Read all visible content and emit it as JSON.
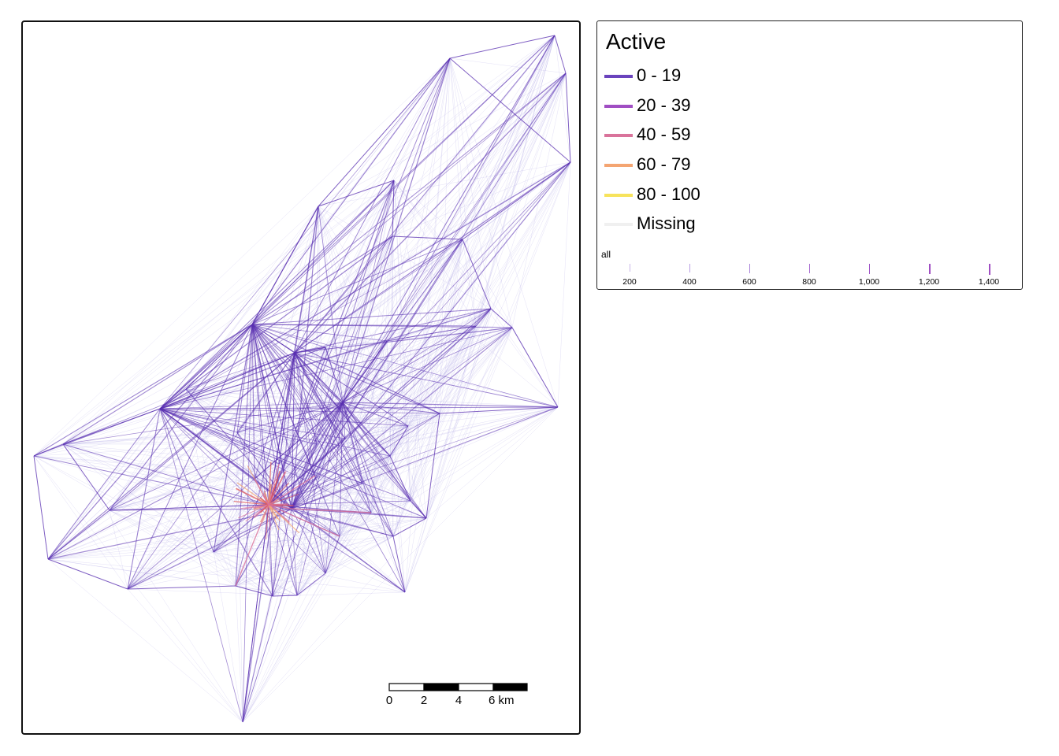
{
  "legend": {
    "title": "Active",
    "items": [
      {
        "label": "0 - 19",
        "color": "#6a43bd"
      },
      {
        "label": "20 - 39",
        "color": "#a04ec3"
      },
      {
        "label": "40 - 59",
        "color": "#d9739b"
      },
      {
        "label": "60 - 79",
        "color": "#f4a572"
      },
      {
        "label": "80 - 100",
        "color": "#f7e35c"
      },
      {
        "label": "Missing",
        "color": "#f0f0f0"
      }
    ],
    "width_legend": {
      "title": "all",
      "ticks": [
        "200",
        "400",
        "600",
        "800",
        "1,000",
        "1,200",
        "1,400"
      ]
    }
  },
  "scale_bar": {
    "labels": [
      "0",
      "2",
      "4",
      "6 km"
    ]
  },
  "map": {
    "hub_color": "#5a2fb0",
    "faint_color": "#9c8ee0",
    "hot_colors": [
      "#d9739b",
      "#f4a572",
      "#e05a5a"
    ]
  }
}
